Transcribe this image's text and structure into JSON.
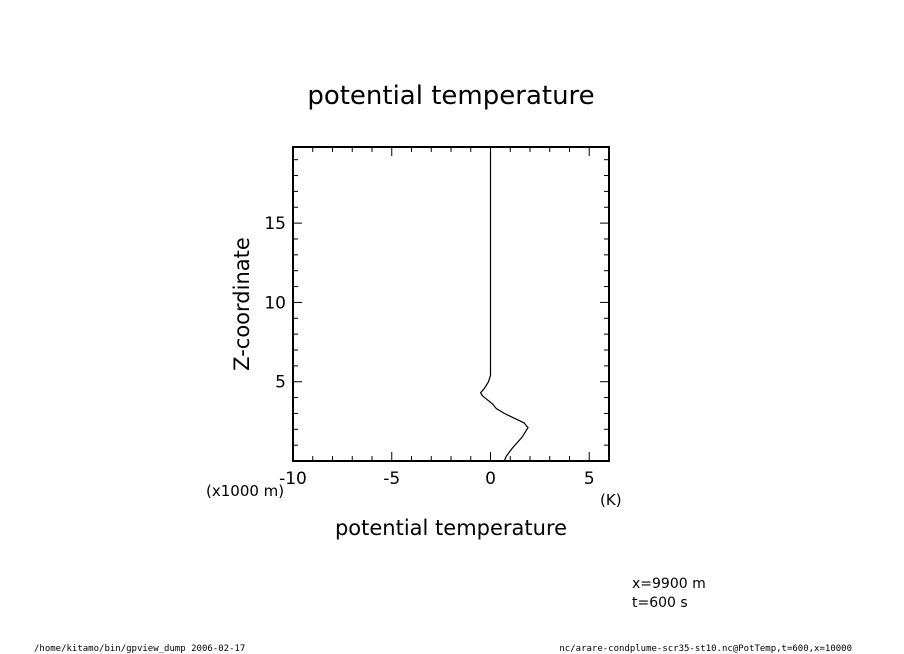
{
  "chart_data": {
    "type": "line",
    "title": "potential temperature",
    "xlabel": "potential temperature",
    "ylabel": "Z-coordinate",
    "x_units": "(K)",
    "y_units": "(x1000 m)",
    "xlim": [
      -10,
      6
    ],
    "ylim": [
      0,
      19.8
    ],
    "x_ticks": [
      -10,
      -5,
      0,
      5
    ],
    "x_tick_labels": [
      "-10",
      "-5",
      "0",
      "5"
    ],
    "y_ticks": [
      5,
      10,
      15
    ],
    "y_tick_labels": [
      "5",
      "10",
      "15"
    ],
    "grid": false,
    "series": [
      {
        "x": [
          0.7,
          0.8,
          1.1,
          1.6,
          1.9,
          1.7,
          1.2,
          0.7,
          0.3,
          0.1,
          -0.2,
          -0.4,
          -0.5,
          -0.3,
          -0.1,
          0.0,
          0.0,
          0.0,
          0.0,
          0.0,
          0.0
        ],
        "y": [
          0.0,
          0.3,
          0.8,
          1.5,
          2.1,
          2.4,
          2.7,
          3.0,
          3.3,
          3.6,
          3.9,
          4.1,
          4.3,
          4.6,
          5.0,
          5.4,
          6.0,
          8.0,
          12.0,
          16.0,
          19.5
        ]
      }
    ]
  },
  "annotations": {
    "position": "x=9900 m",
    "time": "t=600 s"
  },
  "footer": {
    "left": "/home/kitamo/bin/gpview_dump  2006-02-17",
    "right": "nc/arare-condplume-scr35-st10.nc@PotTemp,t=600,x=10000"
  }
}
